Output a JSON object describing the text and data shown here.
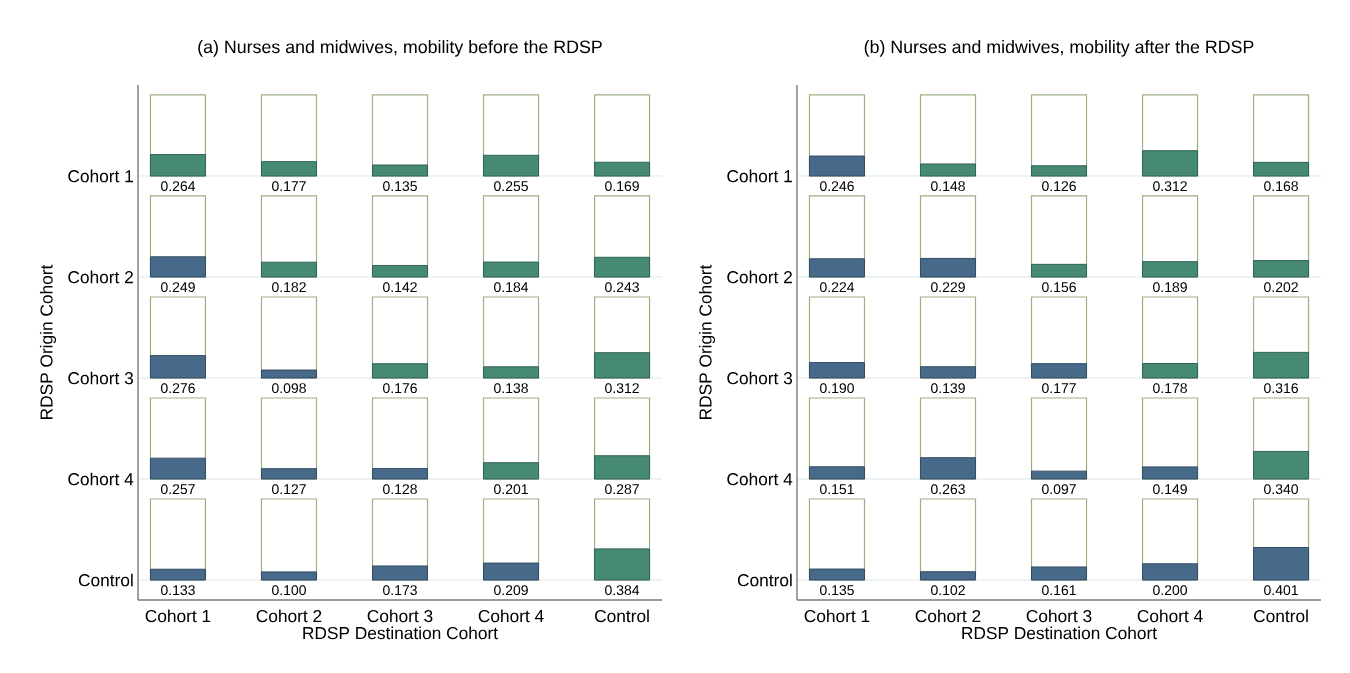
{
  "chart_data": [
    {
      "type": "heatmap",
      "title": "(a) Nurses and midwives, mobility before the RDSP",
      "xlabel": "RDSP Destination Cohort",
      "ylabel": "RDSP Origin Cohort",
      "categories": [
        "Cohort 1",
        "Cohort 2",
        "Cohort 3",
        "Cohort 4",
        "Control"
      ],
      "y_categories": [
        "Cohort 1",
        "Cohort 2",
        "Cohort 3",
        "Cohort 4",
        "Control"
      ],
      "cells": [
        [
          0.264,
          0.177,
          0.135,
          0.255,
          0.169
        ],
        [
          0.249,
          0.182,
          0.142,
          0.184,
          0.243
        ],
        [
          0.276,
          0.098,
          0.176,
          0.138,
          0.312
        ],
        [
          0.257,
          0.127,
          0.128,
          0.201,
          0.287
        ],
        [
          0.133,
          0.1,
          0.173,
          0.209,
          0.384
        ]
      ],
      "cell_labels": [
        [
          "0.264",
          "0.177",
          "0.135",
          "0.255",
          "0.169"
        ],
        [
          "0.249",
          "0.182",
          "0.142",
          "0.184",
          "0.243"
        ],
        [
          "0.276",
          "0.098",
          "0.176",
          "0.138",
          "0.312"
        ],
        [
          "0.257",
          "0.127",
          "0.128",
          "0.201",
          "0.287"
        ],
        [
          "0.133",
          "0.100",
          "0.173",
          "0.209",
          "0.384"
        ]
      ],
      "colors": [
        [
          "#468a73",
          "#468a73",
          "#468a73",
          "#468a73",
          "#468a73"
        ],
        [
          "#486a8a",
          "#468a73",
          "#468a73",
          "#468a73",
          "#468a73"
        ],
        [
          "#486a8a",
          "#486a8a",
          "#468a73",
          "#468a73",
          "#468a73"
        ],
        [
          "#486a8a",
          "#486a8a",
          "#486a8a",
          "#468a73",
          "#468a73"
        ],
        [
          "#486a8a",
          "#486a8a",
          "#486a8a",
          "#486a8a",
          "#468a73"
        ]
      ],
      "grid": "y"
    },
    {
      "type": "heatmap",
      "title": "(b) Nurses and midwives, mobility after the RDSP",
      "xlabel": "RDSP Destination Cohort",
      "ylabel": "RDSP Origin Cohort",
      "categories": [
        "Cohort 1",
        "Cohort 2",
        "Cohort 3",
        "Cohort 4",
        "Control"
      ],
      "y_categories": [
        "Cohort 1",
        "Cohort 2",
        "Cohort 3",
        "Cohort 4",
        "Control"
      ],
      "cells": [
        [
          0.246,
          0.148,
          0.126,
          0.312,
          0.168
        ],
        [
          0.224,
          0.229,
          0.156,
          0.189,
          0.202
        ],
        [
          0.19,
          0.139,
          0.177,
          0.178,
          0.316
        ],
        [
          0.151,
          0.263,
          0.097,
          0.149,
          0.34
        ],
        [
          0.135,
          0.102,
          0.161,
          0.2,
          0.401
        ]
      ],
      "cell_labels": [
        [
          "0.246",
          "0.148",
          "0.126",
          "0.312",
          "0.168"
        ],
        [
          "0.224",
          "0.229",
          "0.156",
          "0.189",
          "0.202"
        ],
        [
          "0.190",
          "0.139",
          "0.177",
          "0.178",
          "0.316"
        ],
        [
          "0.151",
          "0.263",
          "0.097",
          "0.149",
          "0.340"
        ],
        [
          "0.135",
          "0.102",
          "0.161",
          "0.200",
          "0.401"
        ]
      ],
      "colors": [
        [
          "#486a8a",
          "#468a73",
          "#468a73",
          "#468a73",
          "#468a73"
        ],
        [
          "#486a8a",
          "#486a8a",
          "#468a73",
          "#468a73",
          "#468a73"
        ],
        [
          "#486a8a",
          "#486a8a",
          "#486a8a",
          "#468a73",
          "#468a73"
        ],
        [
          "#486a8a",
          "#486a8a",
          "#486a8a",
          "#486a8a",
          "#468a73"
        ],
        [
          "#486a8a",
          "#486a8a",
          "#486a8a",
          "#486a8a",
          "#486a8a"
        ]
      ],
      "grid": "y"
    }
  ]
}
